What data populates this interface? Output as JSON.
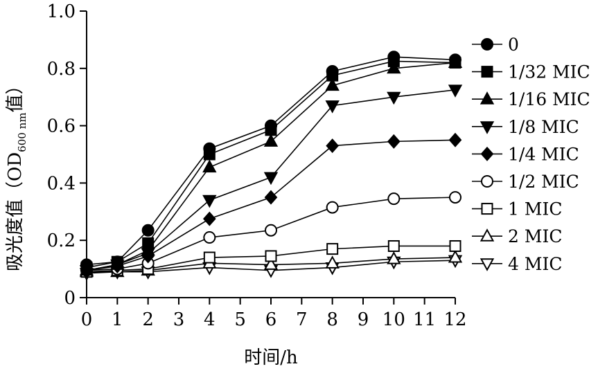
{
  "chart_data": {
    "type": "line",
    "title": "",
    "xlabel": "时间/h",
    "ylabel": {
      "prefix": "吸光度值（OD",
      "subscript": "600 nm",
      "suffix": "值）"
    },
    "xlim": [
      0,
      12
    ],
    "ylim": [
      0,
      1.0
    ],
    "x_ticks": [
      "0",
      "1",
      "2",
      "3",
      "4",
      "5",
      "6",
      "7",
      "8",
      "9",
      "10",
      "11",
      "12"
    ],
    "y_ticks": [
      "0",
      "0.2",
      "0.4",
      "0.6",
      "0.8",
      "1.0"
    ],
    "grid": false,
    "legend_position": "right",
    "x": [
      0,
      1,
      2,
      4,
      6,
      8,
      10,
      12
    ],
    "series": [
      {
        "name": "0",
        "marker": "circle-filled",
        "values": [
          0.115,
          0.125,
          0.235,
          0.52,
          0.6,
          0.79,
          0.84,
          0.83
        ]
      },
      {
        "name": "1/32 MIC",
        "marker": "square-filled",
        "values": [
          0.105,
          0.125,
          0.19,
          0.5,
          0.585,
          0.775,
          0.825,
          0.82
        ]
      },
      {
        "name": "1/16 MIC",
        "marker": "triangle-up-filled",
        "values": [
          0.095,
          0.115,
          0.165,
          0.455,
          0.545,
          0.74,
          0.8,
          0.82
        ]
      },
      {
        "name": "1/8 MIC",
        "marker": "triangle-down-filled",
        "values": [
          0.095,
          0.115,
          0.155,
          0.34,
          0.42,
          0.67,
          0.7,
          0.725
        ]
      },
      {
        "name": "1/4 MIC",
        "marker": "diamond-filled",
        "values": [
          0.095,
          0.11,
          0.145,
          0.275,
          0.35,
          0.53,
          0.545,
          0.55
        ]
      },
      {
        "name": "1/2 MIC",
        "marker": "circle-open",
        "values": [
          0.095,
          0.1,
          0.12,
          0.21,
          0.235,
          0.315,
          0.345,
          0.35
        ]
      },
      {
        "name": "1 MIC",
        "marker": "square-open",
        "values": [
          0.09,
          0.095,
          0.1,
          0.14,
          0.145,
          0.17,
          0.18,
          0.18
        ]
      },
      {
        "name": "2 MIC",
        "marker": "triangle-up-open",
        "values": [
          0.09,
          0.09,
          0.095,
          0.12,
          0.115,
          0.12,
          0.135,
          0.14
        ]
      },
      {
        "name": "4 MIC",
        "marker": "triangle-down-open",
        "values": [
          0.085,
          0.09,
          0.09,
          0.105,
          0.095,
          0.105,
          0.125,
          0.13
        ]
      }
    ]
  }
}
